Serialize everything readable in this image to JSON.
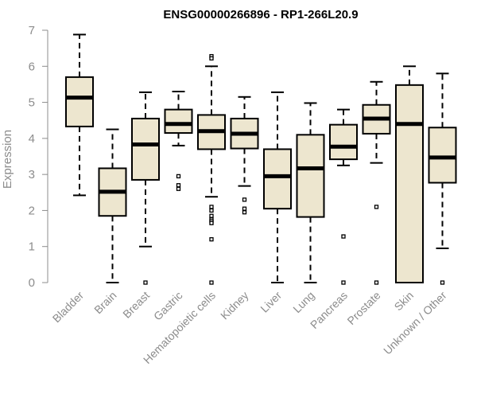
{
  "chart_data": {
    "type": "boxplot",
    "title": "ENSG00000266896 - RP1-266L20.9",
    "xlabel": "",
    "ylabel": "Expression",
    "ylim": [
      0,
      7
    ],
    "yticks": [
      0,
      1,
      2,
      3,
      4,
      5,
      6,
      7
    ],
    "box_color": "#ede6cf",
    "categories": [
      "Bladder",
      "Brain",
      "Breast",
      "Gastric",
      "Hematopoietic cells",
      "Kidney",
      "Liver",
      "Lung",
      "Pancreas",
      "Prostate",
      "Skin",
      "Unknown / Other"
    ],
    "boxes": [
      {
        "whisker_low": 2.42,
        "q1": 4.33,
        "median": 5.13,
        "q3": 5.7,
        "whisker_high": 6.88,
        "outliers": []
      },
      {
        "whisker_low": 0.0,
        "q1": 1.85,
        "median": 2.52,
        "q3": 3.17,
        "whisker_high": 4.25,
        "outliers": []
      },
      {
        "whisker_low": 1.0,
        "q1": 2.85,
        "median": 3.83,
        "q3": 4.55,
        "whisker_high": 5.28,
        "outliers": [
          0.0
        ]
      },
      {
        "whisker_low": 3.8,
        "q1": 4.15,
        "median": 4.4,
        "q3": 4.8,
        "whisker_high": 5.3,
        "outliers": [
          2.95,
          2.7,
          2.6
        ]
      },
      {
        "whisker_low": 2.38,
        "q1": 3.7,
        "median": 4.2,
        "q3": 4.65,
        "whisker_high": 6.0,
        "outliers": [
          6.28,
          6.22,
          2.1,
          2.0,
          1.85,
          1.75,
          1.7,
          1.65,
          1.2,
          0.0
        ]
      },
      {
        "whisker_low": 2.68,
        "q1": 3.72,
        "median": 4.13,
        "q3": 4.55,
        "whisker_high": 5.15,
        "outliers": [
          2.3,
          2.05,
          1.95
        ]
      },
      {
        "whisker_low": 0.0,
        "q1": 2.05,
        "median": 2.95,
        "q3": 3.7,
        "whisker_high": 5.28,
        "outliers": []
      },
      {
        "whisker_low": 0.0,
        "q1": 1.82,
        "median": 3.17,
        "q3": 4.1,
        "whisker_high": 4.98,
        "outliers": []
      },
      {
        "whisker_low": 3.25,
        "q1": 3.42,
        "median": 3.77,
        "q3": 4.38,
        "whisker_high": 4.8,
        "outliers": [
          1.28,
          0.0
        ]
      },
      {
        "whisker_low": 3.32,
        "q1": 4.13,
        "median": 4.55,
        "q3": 4.93,
        "whisker_high": 5.57,
        "outliers": [
          2.1,
          0.0
        ]
      },
      {
        "whisker_low": 0.0,
        "q1": 0.0,
        "median": 4.4,
        "q3": 5.48,
        "whisker_high": 6.0,
        "outliers": []
      },
      {
        "whisker_low": 0.95,
        "q1": 2.77,
        "median": 3.47,
        "q3": 4.3,
        "whisker_high": 5.8,
        "outliers": [
          0.0
        ]
      }
    ]
  }
}
